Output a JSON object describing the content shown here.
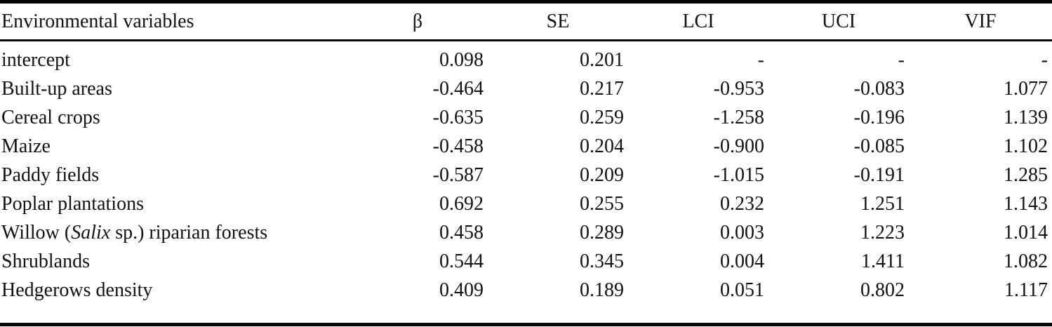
{
  "page": {
    "background_color": "#ffffff",
    "text_color": "#121212",
    "rule_color": "#060606"
  },
  "table": {
    "columns": [
      {
        "id": "variable",
        "label": "Environmental variables"
      },
      {
        "id": "beta",
        "label": "β"
      },
      {
        "id": "se",
        "label": "SE"
      },
      {
        "id": "lci",
        "label": "LCI"
      },
      {
        "id": "uci",
        "label": "UCI"
      },
      {
        "id": "vif",
        "label": "VIF"
      }
    ],
    "rows": [
      {
        "variable": [
          {
            "t": "intercept"
          }
        ],
        "beta": "0.098",
        "se": "0.201",
        "lci": "-",
        "uci": "-",
        "vif": "-"
      },
      {
        "variable": [
          {
            "t": "Built-up areas"
          }
        ],
        "beta": "-0.464",
        "se": "0.217",
        "lci": "-0.953",
        "uci": "-0.083",
        "vif": "1.077"
      },
      {
        "variable": [
          {
            "t": "Cereal crops"
          }
        ],
        "beta": "-0.635",
        "se": "0.259",
        "lci": "-1.258",
        "uci": "-0.196",
        "vif": "1.139"
      },
      {
        "variable": [
          {
            "t": "Maize"
          }
        ],
        "beta": "-0.458",
        "se": "0.204",
        "lci": "-0.900",
        "uci": "-0.085",
        "vif": "1.102"
      },
      {
        "variable": [
          {
            "t": "Paddy fields"
          }
        ],
        "beta": "-0.587",
        "se": "0.209",
        "lci": "-1.015",
        "uci": "-0.191",
        "vif": "1.285"
      },
      {
        "variable": [
          {
            "t": "Poplar plantations"
          }
        ],
        "beta": "0.692",
        "se": "0.255",
        "lci": "0.232",
        "uci": "1.251",
        "vif": "1.143"
      },
      {
        "variable": [
          {
            "t": "Willow ("
          },
          {
            "t": "Salix",
            "italic": true
          },
          {
            "t": " sp.) riparian forests"
          }
        ],
        "beta": "0.458",
        "se": "0.289",
        "lci": "0.003",
        "uci": "1.223",
        "vif": "1.014"
      },
      {
        "variable": [
          {
            "t": "Shrublands"
          }
        ],
        "beta": "0.544",
        "se": "0.345",
        "lci": "0.004",
        "uci": "1.411",
        "vif": "1.082"
      },
      {
        "variable": [
          {
            "t": "Hedgerows density"
          }
        ],
        "beta": "0.409",
        "se": "0.189",
        "lci": "0.051",
        "uci": "0.802",
        "vif": "1.117"
      }
    ]
  }
}
